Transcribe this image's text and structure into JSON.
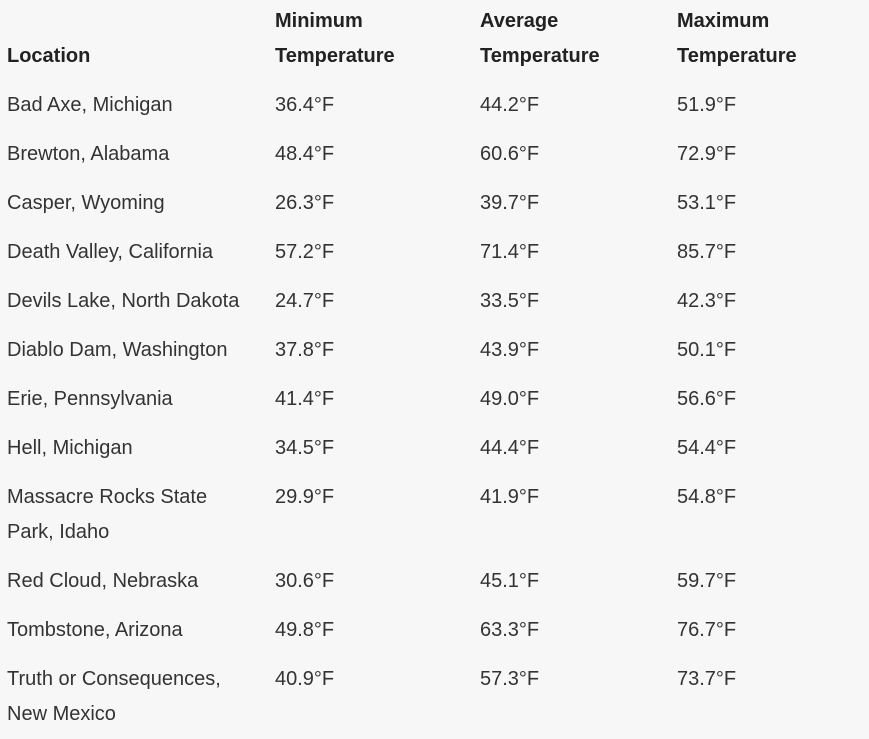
{
  "table": {
    "columns": [
      "Location",
      "Minimum Temperature",
      "Average Temperature",
      "Maximum Temperature"
    ],
    "rows": [
      [
        "Bad Axe, Michigan",
        "36.4°F",
        "44.2°F",
        "51.9°F"
      ],
      [
        "Brewton, Alabama",
        "48.4°F",
        "60.6°F",
        "72.9°F"
      ],
      [
        "Casper, Wyoming",
        "26.3°F",
        "39.7°F",
        "53.1°F"
      ],
      [
        "Death Valley, California",
        "57.2°F",
        "71.4°F",
        "85.7°F"
      ],
      [
        "Devils Lake, North Dakota",
        "24.7°F",
        "33.5°F",
        "42.3°F"
      ],
      [
        "Diablo Dam, Washington",
        "37.8°F",
        "43.9°F",
        "50.1°F"
      ],
      [
        "Erie, Pennsylvania",
        "41.4°F",
        "49.0°F",
        "56.6°F"
      ],
      [
        "Hell, Michigan",
        "34.5°F",
        "44.4°F",
        "54.4°F"
      ],
      [
        "Massacre Rocks State Park, Idaho",
        "29.9°F",
        "41.9°F",
        "54.8°F"
      ],
      [
        "Red Cloud, Nebraska",
        "30.6°F",
        "45.1°F",
        "59.7°F"
      ],
      [
        "Tombstone, Arizona",
        "49.8°F",
        "63.3°F",
        "76.7°F"
      ],
      [
        "Truth or Consequences, New Mexico",
        "40.9°F",
        "57.3°F",
        "73.7°F"
      ]
    ]
  }
}
